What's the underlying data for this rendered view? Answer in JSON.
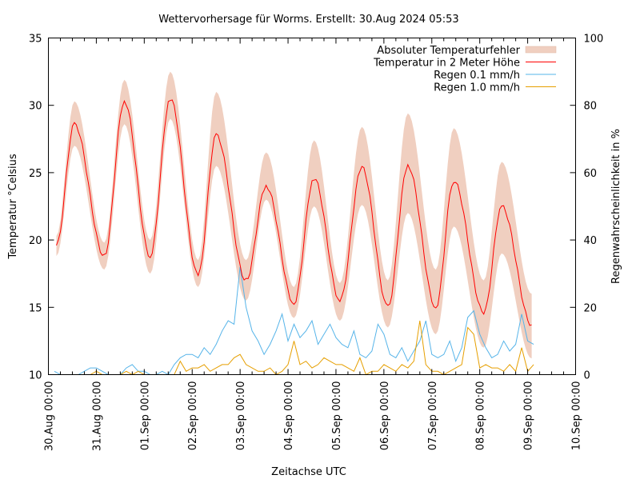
{
  "chart_data": {
    "type": "line",
    "title": "Wettervorhersage für Worms. Erstellt: 30.Aug 2024 05:53",
    "xlabel": "Zeitachse UTC",
    "ylabel": "Temperatur °Celsius",
    "y2label": "Regenwahrscheinlichkeit in %",
    "ylim": [
      10,
      35
    ],
    "y2lim": [
      0,
      100
    ],
    "yticks": [
      "10",
      "15",
      "20",
      "25",
      "30",
      "35"
    ],
    "y2ticks": [
      "0",
      "20",
      "40",
      "60",
      "80",
      "100"
    ],
    "xlim": [
      "2024-08-30 00:00",
      "2024-09-10 00:00"
    ],
    "xticks": [
      "30.Aug 00:00",
      "31.Aug 00:00",
      "01.Sep 00:00",
      "02.Sep 00:00",
      "03.Sep 00:00",
      "04.Sep 00:00",
      "05.Sep 00:00",
      "06.Sep 00:00",
      "07.Sep 00:00",
      "08.Sep 00:00",
      "09.Sep 00:00",
      "10.Sep 00:00"
    ],
    "grid": false,
    "legend_position": "top-right",
    "legend": [
      {
        "label": "Absoluter Temperaturfehler",
        "color": "#f0cfc0",
        "kind": "band"
      },
      {
        "label": "Temperatur in 2 Meter Höhe",
        "color": "#ff0000",
        "kind": "line"
      },
      {
        "label": "Regen 0.1 mm/h",
        "color": "#56b4e9",
        "kind": "line"
      },
      {
        "label": "Regen 1.0 mm/h",
        "color": "#e69f00",
        "kind": "line"
      }
    ],
    "temperature": [
      {
        "t": "2024-08-30 04:00",
        "temp": 19.6,
        "lo": 18.8,
        "hi": 20.3
      },
      {
        "t": "2024-08-30 13:00",
        "temp": 28.6,
        "lo": 27.0,
        "hi": 30.3
      },
      {
        "t": "2024-08-31 04:00",
        "temp": 18.8,
        "lo": 17.8,
        "hi": 19.8
      },
      {
        "t": "2024-08-31 14:00",
        "temp": 30.3,
        "lo": 28.6,
        "hi": 31.9
      },
      {
        "t": "2024-09-01 03:00",
        "temp": 18.8,
        "lo": 17.5,
        "hi": 20.0
      },
      {
        "t": "2024-09-01 13:00",
        "temp": 30.5,
        "lo": 29.0,
        "hi": 32.5
      },
      {
        "t": "2024-09-02 03:00",
        "temp": 17.4,
        "lo": 16.5,
        "hi": 18.5
      },
      {
        "t": "2024-09-02 12:00",
        "temp": 27.8,
        "lo": 25.5,
        "hi": 31.0
      },
      {
        "t": "2024-09-03 03:00",
        "temp": 17.0,
        "lo": 15.5,
        "hi": 18.5
      },
      {
        "t": "2024-09-03 13:00",
        "temp": 24.0,
        "lo": 23.0,
        "hi": 26.5
      },
      {
        "t": "2024-09-04 03:00",
        "temp": 15.3,
        "lo": 14.2,
        "hi": 16.5
      },
      {
        "t": "2024-09-04 13:00",
        "temp": 24.6,
        "lo": 22.5,
        "hi": 27.4
      },
      {
        "t": "2024-09-05 02:00",
        "temp": 15.5,
        "lo": 14.0,
        "hi": 16.8
      },
      {
        "t": "2024-09-05 13:00",
        "temp": 25.4,
        "lo": 22.6,
        "hi": 28.4
      },
      {
        "t": "2024-09-06 02:00",
        "temp": 15.0,
        "lo": 13.5,
        "hi": 17.0
      },
      {
        "t": "2024-09-06 12:00",
        "temp": 25.5,
        "lo": 22.0,
        "hi": 29.4
      },
      {
        "t": "2024-09-07 02:00",
        "temp": 15.0,
        "lo": 13.0,
        "hi": 17.8
      },
      {
        "t": "2024-09-07 11:00",
        "temp": 24.4,
        "lo": 21.0,
        "hi": 28.3
      },
      {
        "t": "2024-09-08 02:00",
        "temp": 14.6,
        "lo": 12.0,
        "hi": 17.0
      },
      {
        "t": "2024-09-08 11:00",
        "temp": 22.5,
        "lo": 19.0,
        "hi": 25.8
      },
      {
        "t": "2024-09-09 02:00",
        "temp": 13.7,
        "lo": 11.2,
        "hi": 16.0
      }
    ],
    "rain": {
      "times": [
        "2024-08-30 03:00",
        "2024-08-30 06:00",
        "2024-08-30 09:00",
        "2024-08-30 12:00",
        "2024-08-30 15:00",
        "2024-08-30 18:00",
        "2024-08-30 21:00",
        "2024-08-31 00:00",
        "2024-08-31 03:00",
        "2024-08-31 06:00",
        "2024-08-31 09:00",
        "2024-08-31 12:00",
        "2024-08-31 15:00",
        "2024-08-31 18:00",
        "2024-08-31 21:00",
        "2024-09-01 00:00",
        "2024-09-01 03:00",
        "2024-09-01 06:00",
        "2024-09-01 09:00",
        "2024-09-01 12:00",
        "2024-09-01 15:00",
        "2024-09-01 18:00",
        "2024-09-01 21:00",
        "2024-09-02 00:00",
        "2024-09-02 03:00",
        "2024-09-02 06:00",
        "2024-09-02 09:00",
        "2024-09-02 12:00",
        "2024-09-02 15:00",
        "2024-09-02 18:00",
        "2024-09-02 21:00",
        "2024-09-03 00:00",
        "2024-09-03 03:00",
        "2024-09-03 06:00",
        "2024-09-03 09:00",
        "2024-09-03 12:00",
        "2024-09-03 15:00",
        "2024-09-03 18:00",
        "2024-09-03 21:00",
        "2024-09-04 00:00",
        "2024-09-04 03:00",
        "2024-09-04 06:00",
        "2024-09-04 09:00",
        "2024-09-04 12:00",
        "2024-09-04 15:00",
        "2024-09-04 18:00",
        "2024-09-04 21:00",
        "2024-09-05 00:00",
        "2024-09-05 03:00",
        "2024-09-05 06:00",
        "2024-09-05 09:00",
        "2024-09-05 12:00",
        "2024-09-05 15:00",
        "2024-09-05 18:00",
        "2024-09-05 21:00",
        "2024-09-06 00:00",
        "2024-09-06 03:00",
        "2024-09-06 06:00",
        "2024-09-06 09:00",
        "2024-09-06 12:00",
        "2024-09-06 15:00",
        "2024-09-06 18:00",
        "2024-09-06 21:00",
        "2024-09-07 00:00",
        "2024-09-07 03:00",
        "2024-09-07 06:00",
        "2024-09-07 09:00",
        "2024-09-07 12:00",
        "2024-09-07 15:00",
        "2024-09-07 18:00",
        "2024-09-07 21:00",
        "2024-09-08 00:00",
        "2024-09-08 03:00",
        "2024-09-08 06:00",
        "2024-09-08 09:00",
        "2024-09-08 12:00",
        "2024-09-08 15:00",
        "2024-09-08 18:00",
        "2024-09-08 21:00",
        "2024-09-09 00:00",
        "2024-09-09 03:00"
      ],
      "p01": [
        1,
        0,
        0,
        0,
        0,
        1,
        2,
        2,
        1,
        0,
        0,
        0,
        2,
        3,
        1,
        1,
        0,
        0,
        1,
        0,
        3,
        5,
        6,
        6,
        5,
        8,
        6,
        9,
        13,
        16,
        15,
        32,
        20,
        13,
        10,
        6,
        9,
        13,
        18,
        10,
        15,
        11,
        13,
        16,
        9,
        12,
        15,
        11,
        9,
        8,
        13,
        6,
        5,
        7,
        15,
        12,
        6,
        5,
        8,
        4,
        7,
        10,
        16,
        6,
        5,
        6,
        10,
        4,
        8,
        17,
        19,
        12,
        8,
        5,
        6,
        10,
        7,
        9,
        18,
        10,
        9
      ],
      "p10": [
        0,
        0,
        0,
        0,
        0,
        0,
        0,
        1,
        0,
        0,
        0,
        0,
        1,
        0,
        1,
        0,
        0,
        0,
        0,
        0,
        0,
        4,
        1,
        2,
        2,
        3,
        1,
        2,
        3,
        3,
        5,
        6,
        3,
        2,
        1,
        1,
        2,
        0,
        1,
        3,
        10,
        3,
        4,
        2,
        3,
        5,
        4,
        3,
        3,
        2,
        1,
        5,
        0,
        1,
        1,
        3,
        2,
        1,
        3,
        2,
        4,
        16,
        3,
        1,
        1,
        0,
        1,
        2,
        3,
        14,
        12,
        2,
        3,
        2,
        2,
        1,
        3,
        1,
        8,
        1,
        3
      ]
    }
  }
}
